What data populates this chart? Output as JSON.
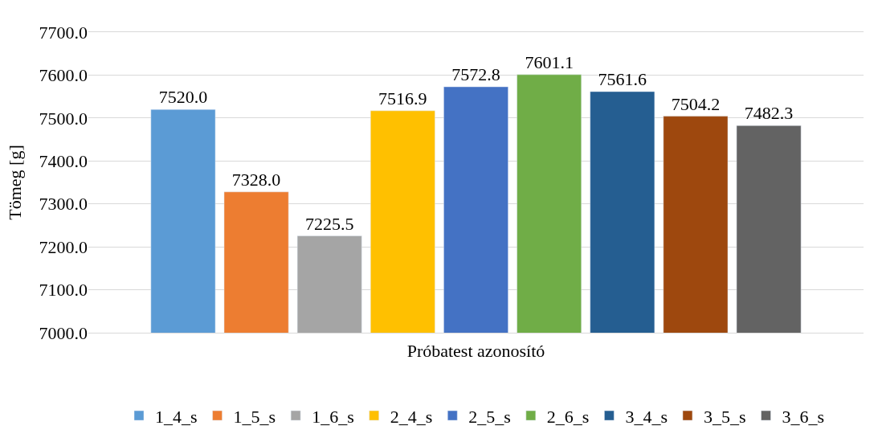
{
  "chart_data": {
    "type": "bar",
    "xlabel": "Próbatest azonosító",
    "ylabel": "Tömeg [g]",
    "categories": [
      null
    ],
    "series": [
      {
        "name": "1_4_s",
        "color": "#5b9bd5",
        "values": [
          7520.0
        ],
        "value_labels": [
          "7520.0"
        ]
      },
      {
        "name": "1_5_s",
        "color": "#ed7d31",
        "values": [
          7328.0
        ],
        "value_labels": [
          "7328.0"
        ]
      },
      {
        "name": "1_6_s",
        "color": "#a5a5a5",
        "values": [
          7225.5
        ],
        "value_labels": [
          "7225.5"
        ]
      },
      {
        "name": "2_4_s",
        "color": "#ffc000",
        "values": [
          7516.9
        ],
        "value_labels": [
          "7516.9"
        ]
      },
      {
        "name": "2_5_s",
        "color": "#4472c4",
        "values": [
          7572.8
        ],
        "value_labels": [
          "7572.8"
        ]
      },
      {
        "name": "2_6_s",
        "color": "#70ad47",
        "values": [
          7601.1
        ],
        "value_labels": [
          "7601.1"
        ]
      },
      {
        "name": "3_4_s",
        "color": "#255e91",
        "values": [
          7561.6
        ],
        "value_labels": [
          "7561.6"
        ]
      },
      {
        "name": "3_5_s",
        "color": "#9e480e",
        "values": [
          7504.2
        ],
        "value_labels": [
          "7504.2"
        ]
      },
      {
        "name": "3_6_s",
        "color": "#636363",
        "values": [
          7482.3
        ],
        "value_labels": [
          "7482.3"
        ]
      }
    ],
    "ylim": [
      7000,
      7700
    ],
    "yticks": [
      {
        "value": 7000,
        "label": "7000.0"
      },
      {
        "value": 7100,
        "label": "7100.0"
      },
      {
        "value": 7200,
        "label": "7200.0"
      },
      {
        "value": 7300,
        "label": "7300.0"
      },
      {
        "value": 7400,
        "label": "7400.0"
      },
      {
        "value": 7500,
        "label": "7500.0"
      },
      {
        "value": 7600,
        "label": "7600.0"
      },
      {
        "value": 7700,
        "label": "7700.0"
      }
    ],
    "grid": "y",
    "legend": "bottom"
  }
}
